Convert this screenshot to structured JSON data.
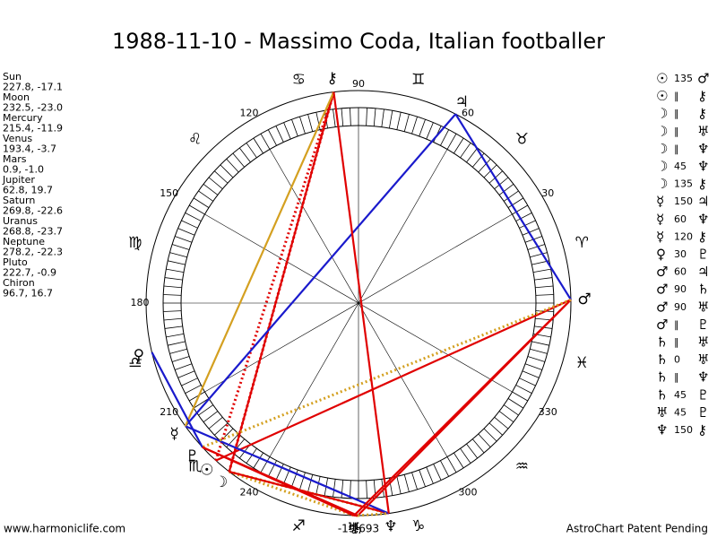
{
  "header": {
    "title": "1988-11-10 - Massimo Coda, Italian footballer"
  },
  "planets": [
    {
      "name": "Sun",
      "glyph": "☉",
      "coords": "227.8, -17.1"
    },
    {
      "name": "Moon",
      "glyph": "☽",
      "coords": "232.5, -23.0"
    },
    {
      "name": "Mercury",
      "glyph": "☿",
      "coords": "215.4, -11.9"
    },
    {
      "name": "Venus",
      "glyph": "♀",
      "coords": "193.4, -3.7"
    },
    {
      "name": "Mars",
      "glyph": "♂",
      "coords": "0.9, -1.0"
    },
    {
      "name": "Jupiter",
      "glyph": "♃",
      "coords": "62.8, 19.7"
    },
    {
      "name": "Saturn",
      "glyph": "♄",
      "coords": "269.8, -22.6"
    },
    {
      "name": "Uranus",
      "glyph": "♅",
      "coords": "268.8, -23.7"
    },
    {
      "name": "Neptune",
      "glyph": "♆",
      "coords": "278.2, -22.3"
    },
    {
      "name": "Pluto",
      "glyph": "♇",
      "coords": "222.7, -0.9"
    },
    {
      "name": "Chiron",
      "glyph": "⚷",
      "coords": "96.7, 16.7"
    }
  ],
  "aspects": [
    {
      "from": "☉",
      "aspect": "135",
      "to": "♂",
      "color": "#e00000"
    },
    {
      "from": "☉",
      "aspect": "‖",
      "to": "⚷",
      "color": "#e00000",
      "dash": true
    },
    {
      "from": "☽",
      "aspect": "‖",
      "to": "⚷",
      "color": "#e00000",
      "dash": true
    },
    {
      "from": "☽",
      "aspect": "‖",
      "to": "♅",
      "color": "#d4a020",
      "dash": true
    },
    {
      "from": "☽",
      "aspect": "‖",
      "to": "♆",
      "color": "#d4a020",
      "dash": true
    },
    {
      "from": "☽",
      "aspect": "45",
      "to": "♆",
      "color": "#e00000"
    },
    {
      "from": "☽",
      "aspect": "135",
      "to": "⚷",
      "color": "#e00000"
    },
    {
      "from": "☿",
      "aspect": "150",
      "to": "♃",
      "color": "#1a1acc"
    },
    {
      "from": "☿",
      "aspect": "60",
      "to": "♆",
      "color": "#1a1acc"
    },
    {
      "from": "☿",
      "aspect": "120",
      "to": "⚷",
      "color": "#d4a020"
    },
    {
      "from": "♀",
      "aspect": "30",
      "to": "♇",
      "color": "#1a1acc"
    },
    {
      "from": "♂",
      "aspect": "60",
      "to": "♃",
      "color": "#1a1acc"
    },
    {
      "from": "♂",
      "aspect": "90",
      "to": "♄",
      "color": "#e00000"
    },
    {
      "from": "♂",
      "aspect": "90",
      "to": "♅",
      "color": "#e00000"
    },
    {
      "from": "♂",
      "aspect": "‖",
      "to": "♇",
      "color": "#d4a020",
      "dash": true
    },
    {
      "from": "♄",
      "aspect": "‖",
      "to": "♅",
      "color": "#d4a020",
      "dash": true
    },
    {
      "from": "♄",
      "aspect": "0",
      "to": "♅",
      "color": "#e00000"
    },
    {
      "from": "♄",
      "aspect": "‖",
      "to": "♆",
      "color": "#d4a020",
      "dash": true
    },
    {
      "from": "♄",
      "aspect": "45",
      "to": "♇",
      "color": "#e00000"
    },
    {
      "from": "♅",
      "aspect": "45",
      "to": "♇",
      "color": "#e00000"
    },
    {
      "from": "♆",
      "aspect": "150",
      "to": "⚷",
      "color": "#e00000"
    }
  ],
  "signs": [
    "♈",
    "♉",
    "♊",
    "♋",
    "♌",
    "♍",
    "♎",
    "♏",
    "♐",
    "♑",
    "♒",
    "♓"
  ],
  "degree_labels": [
    30,
    60,
    90,
    120,
    150,
    180,
    210,
    240,
    300,
    330
  ],
  "center_label": "-19,693",
  "footer": {
    "left": "www.harmoniclife.com",
    "right": "AstroChart Patent Pending"
  }
}
